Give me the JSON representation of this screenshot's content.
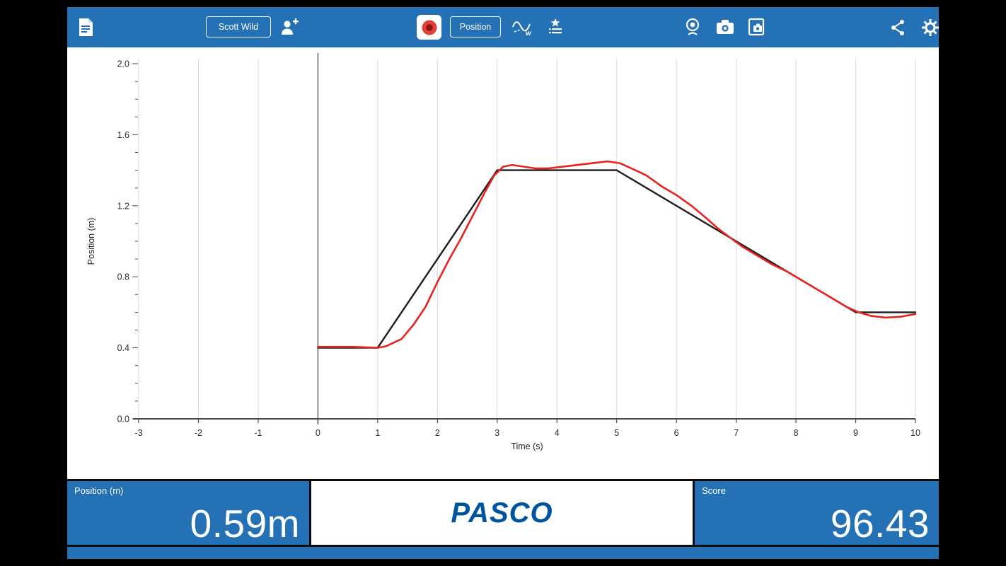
{
  "toolbar": {
    "user_button_label": "Scott Wild",
    "sensor_button_label": "Position",
    "icons": [
      "journal-icon",
      "add-user-icon",
      "record-button",
      "match-settings-icon",
      "run-list-icon",
      "webcam-icon",
      "camera-icon",
      "screenshot-icon",
      "share-icon",
      "settings-gear-icon"
    ]
  },
  "chart_data": {
    "type": "line",
    "title": "",
    "xlabel": "Time (s)",
    "ylabel": "Position (m)",
    "xlim": [
      -3,
      10
    ],
    "ylim": [
      0,
      2
    ],
    "x_ticks": [
      -3,
      -2,
      -1,
      0,
      1,
      2,
      3,
      4,
      5,
      6,
      7,
      8,
      9,
      10
    ],
    "y_ticks": [
      0,
      0.4,
      0.8,
      1.2,
      1.6,
      2
    ],
    "y_tick_labels": [
      "0.0",
      "0.4",
      "0.8",
      "1.2",
      "1.6",
      "2.0"
    ],
    "grid": "vertical-only",
    "legend": "none",
    "series": [
      {
        "name": "target-path",
        "color": "#1c1c1c",
        "width": 2.4,
        "points": [
          [
            0,
            0.4
          ],
          [
            1,
            0.4
          ],
          [
            3,
            1.4
          ],
          [
            5,
            1.4
          ],
          [
            9,
            0.6
          ],
          [
            10,
            0.6
          ]
        ]
      },
      {
        "name": "recorded-position",
        "color": "#e8231f",
        "width": 2.6,
        "points": [
          [
            0,
            0.405
          ],
          [
            0.6,
            0.405
          ],
          [
            1,
            0.4
          ],
          [
            1.15,
            0.41
          ],
          [
            1.4,
            0.45
          ],
          [
            1.6,
            0.53
          ],
          [
            1.8,
            0.63
          ],
          [
            2,
            0.77
          ],
          [
            2.2,
            0.9
          ],
          [
            2.4,
            1.02
          ],
          [
            2.6,
            1.15
          ],
          [
            2.8,
            1.28
          ],
          [
            2.95,
            1.37
          ],
          [
            3.1,
            1.42
          ],
          [
            3.25,
            1.43
          ],
          [
            3.45,
            1.42
          ],
          [
            3.65,
            1.41
          ],
          [
            3.85,
            1.41
          ],
          [
            4.1,
            1.42
          ],
          [
            4.35,
            1.43
          ],
          [
            4.6,
            1.44
          ],
          [
            4.85,
            1.45
          ],
          [
            5.05,
            1.44
          ],
          [
            5.25,
            1.41
          ],
          [
            5.5,
            1.37
          ],
          [
            5.75,
            1.31
          ],
          [
            6,
            1.26
          ],
          [
            6.25,
            1.2
          ],
          [
            6.5,
            1.13
          ],
          [
            6.7,
            1.07
          ],
          [
            6.9,
            1.02
          ],
          [
            7.1,
            0.97
          ],
          [
            7.35,
            0.92
          ],
          [
            7.6,
            0.87
          ],
          [
            7.85,
            0.83
          ],
          [
            8.1,
            0.78
          ],
          [
            8.35,
            0.73
          ],
          [
            8.6,
            0.68
          ],
          [
            8.85,
            0.63
          ],
          [
            9.05,
            0.6
          ],
          [
            9.25,
            0.58
          ],
          [
            9.5,
            0.57
          ],
          [
            9.75,
            0.575
          ],
          [
            10,
            0.59
          ]
        ]
      }
    ]
  },
  "readouts": {
    "position_label": "Position (m)",
    "position_value": "0.59m",
    "score_label": "Score",
    "score_value": "96.43",
    "brand": "PASCO"
  }
}
